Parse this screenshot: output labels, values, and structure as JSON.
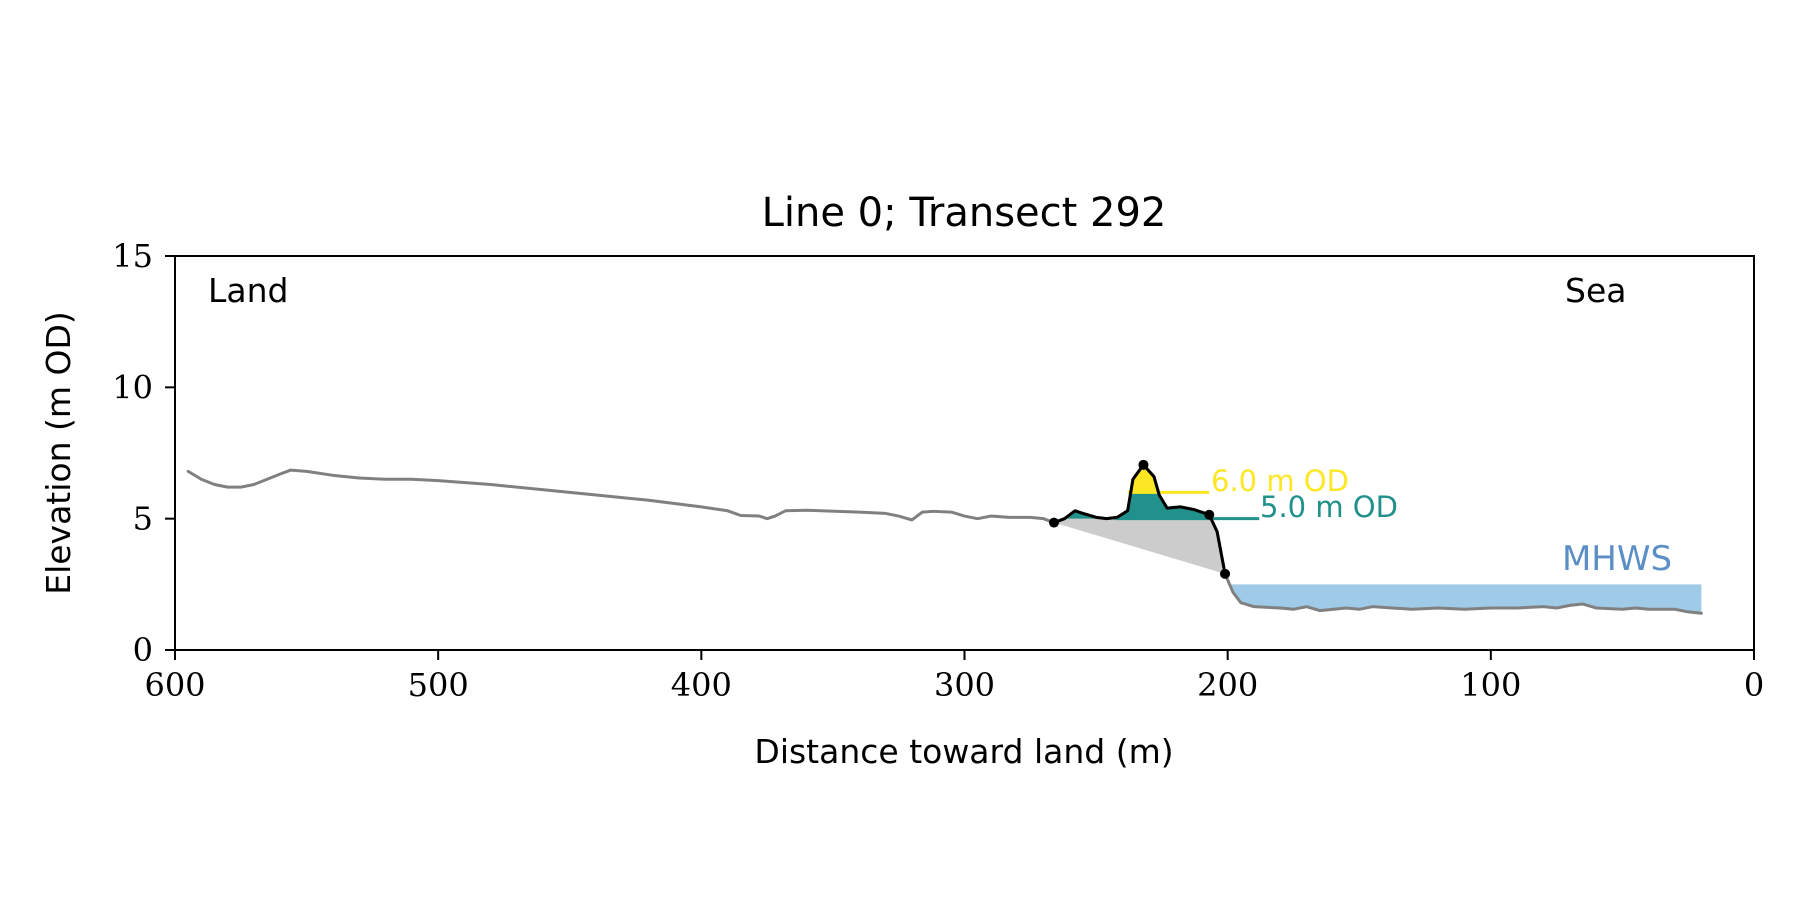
{
  "chart_data": {
    "type": "line",
    "title": "Line 0; Transect 292",
    "xlabel": "Distance toward land (m)",
    "ylabel": "Elevation (m OD)",
    "xlim": [
      600,
      0
    ],
    "ylim": [
      0,
      15
    ],
    "x_ticks": [
      600,
      500,
      400,
      300,
      200,
      100,
      0
    ],
    "y_ticks": [
      0,
      5,
      10,
      15
    ],
    "x_tick_labels": [
      "600",
      "500",
      "400",
      "300",
      "200",
      "100",
      "0"
    ],
    "y_tick_labels": [
      "0",
      "5",
      "10",
      "15"
    ],
    "grid": false,
    "annotations": {
      "land": "Land",
      "sea": "Sea",
      "mhws": "MHWS",
      "level_6": "6.0 m OD",
      "level_5": "5.0 m OD"
    },
    "levels": [
      {
        "name": "6.0 m OD",
        "y": 6.0,
        "x_start": 238,
        "x_end": 207,
        "color": "#fde725"
      },
      {
        "name": "5.0 m OD",
        "y": 5.0,
        "x_start": 243,
        "x_end": 188,
        "color": "#21918c"
      }
    ],
    "mhws": {
      "y": 2.5,
      "x_start": 200,
      "x_end": 20,
      "color": "#a0cbe8"
    },
    "series": [
      {
        "role": "profile",
        "color": "#808080",
        "points": [
          [
            595,
            6.8
          ],
          [
            590,
            6.5
          ],
          [
            585,
            6.3
          ],
          [
            580,
            6.2
          ],
          [
            575,
            6.2
          ],
          [
            570,
            6.3
          ],
          [
            565,
            6.5
          ],
          [
            560,
            6.7
          ],
          [
            556,
            6.85
          ],
          [
            550,
            6.8
          ],
          [
            540,
            6.65
          ],
          [
            530,
            6.55
          ],
          [
            520,
            6.5
          ],
          [
            510,
            6.5
          ],
          [
            500,
            6.45
          ],
          [
            480,
            6.3
          ],
          [
            460,
            6.1
          ],
          [
            440,
            5.9
          ],
          [
            420,
            5.7
          ],
          [
            400,
            5.45
          ],
          [
            390,
            5.3
          ],
          [
            385,
            5.12
          ],
          [
            378,
            5.1
          ],
          [
            375,
            5.0
          ],
          [
            372,
            5.1
          ],
          [
            368,
            5.3
          ],
          [
            360,
            5.32
          ],
          [
            340,
            5.25
          ],
          [
            330,
            5.2
          ],
          [
            325,
            5.1
          ],
          [
            320,
            4.95
          ],
          [
            316,
            5.25
          ],
          [
            312,
            5.28
          ],
          [
            305,
            5.25
          ],
          [
            300,
            5.1
          ],
          [
            295,
            5.0
          ],
          [
            290,
            5.1
          ],
          [
            283,
            5.05
          ],
          [
            275,
            5.05
          ],
          [
            270,
            5.0
          ],
          [
            266,
            4.85
          ],
          [
            262,
            5.0
          ],
          [
            258,
            5.3
          ],
          [
            255,
            5.2
          ],
          [
            250,
            5.05
          ],
          [
            246,
            5.0
          ],
          [
            242,
            5.05
          ],
          [
            238,
            5.3
          ],
          [
            236,
            6.5
          ],
          [
            232,
            7.05
          ],
          [
            228,
            6.6
          ],
          [
            226,
            5.9
          ],
          [
            223,
            5.4
          ],
          [
            218,
            5.45
          ],
          [
            213,
            5.35
          ],
          [
            207,
            5.15
          ],
          [
            204,
            4.5
          ],
          [
            201,
            2.9
          ],
          [
            198,
            2.2
          ],
          [
            195,
            1.8
          ],
          [
            190,
            1.65
          ],
          [
            180,
            1.6
          ],
          [
            175,
            1.55
          ],
          [
            170,
            1.65
          ],
          [
            165,
            1.5
          ],
          [
            155,
            1.6
          ],
          [
            150,
            1.55
          ],
          [
            145,
            1.65
          ],
          [
            130,
            1.55
          ],
          [
            120,
            1.6
          ],
          [
            110,
            1.55
          ],
          [
            100,
            1.6
          ],
          [
            90,
            1.6
          ],
          [
            80,
            1.65
          ],
          [
            75,
            1.6
          ],
          [
            70,
            1.7
          ],
          [
            65,
            1.75
          ],
          [
            60,
            1.6
          ],
          [
            50,
            1.55
          ],
          [
            45,
            1.6
          ],
          [
            40,
            1.55
          ],
          [
            30,
            1.55
          ],
          [
            25,
            1.45
          ],
          [
            20,
            1.4
          ]
        ]
      },
      {
        "role": "dune",
        "color": "#000000",
        "points": [
          [
            266,
            4.85
          ],
          [
            262,
            5.0
          ],
          [
            258,
            5.3
          ],
          [
            255,
            5.2
          ],
          [
            250,
            5.05
          ],
          [
            246,
            5.0
          ],
          [
            242,
            5.05
          ],
          [
            238,
            5.3
          ],
          [
            236,
            6.5
          ],
          [
            232,
            7.05
          ],
          [
            228,
            6.6
          ],
          [
            226,
            5.9
          ],
          [
            223,
            5.4
          ],
          [
            218,
            5.45
          ],
          [
            213,
            5.35
          ],
          [
            207,
            5.15
          ],
          [
            204,
            4.5
          ],
          [
            201,
            2.9
          ]
        ]
      }
    ],
    "markers": [
      [
        266,
        4.85
      ],
      [
        232,
        7.05
      ],
      [
        207,
        5.15
      ],
      [
        201,
        2.9
      ]
    ]
  }
}
